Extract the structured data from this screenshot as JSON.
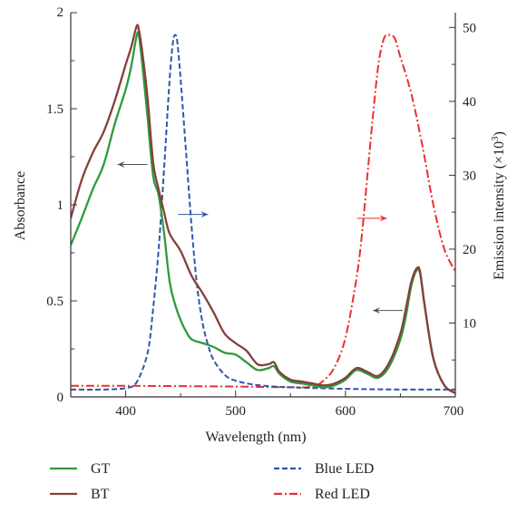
{
  "colors": {
    "GT": "#2e9a3c",
    "BT": "#84403a",
    "Blue LED": "#2f56a8",
    "Red LED": "#e8312c",
    "axis": "#333333"
  },
  "chart_data": {
    "type": "line",
    "xlabel": "Wavelength (nm)",
    "ylabel_left": "Absorbance",
    "ylabel_right_prefix": "Emission intensity (×10",
    "ylabel_right_exp": "3",
    "ylabel_right_suffix": ")",
    "xlim": [
      350,
      700
    ],
    "ylim_left": [
      0,
      2
    ],
    "ylim_right": [
      0,
      52
    ],
    "x_ticks": [
      400,
      500,
      600,
      700
    ],
    "y_ticks_left": [
      0,
      0.5,
      1,
      1.5,
      2
    ],
    "y_ticks_left_labels": [
      "0",
      "0.5",
      "1",
      "1.5",
      "2"
    ],
    "y_ticks_right": [
      10,
      20,
      30,
      40,
      50
    ],
    "legend": [
      "GT",
      "BT",
      "Blue LED",
      "Red LED"
    ],
    "legend_position": "bottom",
    "series": [
      {
        "name": "GT",
        "axis": "left",
        "style": "solid",
        "points": [
          [
            350,
            0.79
          ],
          [
            360,
            0.93
          ],
          [
            370,
            1.08
          ],
          [
            380,
            1.21
          ],
          [
            390,
            1.42
          ],
          [
            400,
            1.6
          ],
          [
            405,
            1.72
          ],
          [
            410,
            1.88
          ],
          [
            412,
            1.88
          ],
          [
            415,
            1.74
          ],
          [
            420,
            1.45
          ],
          [
            425,
            1.15
          ],
          [
            430,
            1.05
          ],
          [
            435,
            0.85
          ],
          [
            440,
            0.6
          ],
          [
            445,
            0.48
          ],
          [
            450,
            0.4
          ],
          [
            455,
            0.34
          ],
          [
            460,
            0.3
          ],
          [
            470,
            0.28
          ],
          [
            480,
            0.26
          ],
          [
            490,
            0.23
          ],
          [
            500,
            0.22
          ],
          [
            510,
            0.18
          ],
          [
            520,
            0.14
          ],
          [
            530,
            0.15
          ],
          [
            535,
            0.16
          ],
          [
            540,
            0.12
          ],
          [
            550,
            0.08
          ],
          [
            560,
            0.07
          ],
          [
            570,
            0.06
          ],
          [
            580,
            0.05
          ],
          [
            590,
            0.06
          ],
          [
            600,
            0.09
          ],
          [
            610,
            0.14
          ],
          [
            620,
            0.12
          ],
          [
            630,
            0.1
          ],
          [
            640,
            0.16
          ],
          [
            650,
            0.3
          ],
          [
            655,
            0.42
          ],
          [
            660,
            0.58
          ],
          [
            665,
            0.66
          ],
          [
            668,
            0.64
          ],
          [
            672,
            0.48
          ],
          [
            680,
            0.2
          ],
          [
            690,
            0.06
          ],
          [
            700,
            0.02
          ]
        ]
      },
      {
        "name": "BT",
        "axis": "left",
        "style": "solid",
        "points": [
          [
            350,
            0.93
          ],
          [
            360,
            1.13
          ],
          [
            370,
            1.27
          ],
          [
            380,
            1.38
          ],
          [
            390,
            1.54
          ],
          [
            400,
            1.73
          ],
          [
            405,
            1.82
          ],
          [
            410,
            1.93
          ],
          [
            412,
            1.91
          ],
          [
            415,
            1.8
          ],
          [
            420,
            1.55
          ],
          [
            425,
            1.22
          ],
          [
            430,
            1.08
          ],
          [
            435,
            0.96
          ],
          [
            440,
            0.85
          ],
          [
            450,
            0.76
          ],
          [
            460,
            0.63
          ],
          [
            470,
            0.54
          ],
          [
            480,
            0.44
          ],
          [
            490,
            0.33
          ],
          [
            500,
            0.28
          ],
          [
            510,
            0.24
          ],
          [
            520,
            0.17
          ],
          [
            530,
            0.17
          ],
          [
            535,
            0.18
          ],
          [
            540,
            0.13
          ],
          [
            550,
            0.09
          ],
          [
            560,
            0.08
          ],
          [
            570,
            0.07
          ],
          [
            580,
            0.06
          ],
          [
            590,
            0.07
          ],
          [
            600,
            0.1
          ],
          [
            610,
            0.15
          ],
          [
            620,
            0.13
          ],
          [
            630,
            0.11
          ],
          [
            640,
            0.18
          ],
          [
            650,
            0.33
          ],
          [
            655,
            0.46
          ],
          [
            660,
            0.6
          ],
          [
            665,
            0.67
          ],
          [
            668,
            0.65
          ],
          [
            672,
            0.48
          ],
          [
            680,
            0.2
          ],
          [
            690,
            0.06
          ],
          [
            700,
            0.02
          ]
        ]
      },
      {
        "name": "Blue LED",
        "axis": "right",
        "style": "dashed",
        "points": [
          [
            350,
            1.0
          ],
          [
            380,
            1.0
          ],
          [
            400,
            1.2
          ],
          [
            410,
            2.0
          ],
          [
            420,
            6.0
          ],
          [
            425,
            12.0
          ],
          [
            430,
            20.0
          ],
          [
            435,
            31.0
          ],
          [
            440,
            43.0
          ],
          [
            443,
            48.0
          ],
          [
            445,
            49.0
          ],
          [
            447,
            48.0
          ],
          [
            450,
            43.0
          ],
          [
            455,
            33.0
          ],
          [
            460,
            23.0
          ],
          [
            465,
            15.0
          ],
          [
            470,
            10.0
          ],
          [
            475,
            7.0
          ],
          [
            480,
            5.0
          ],
          [
            490,
            3.0
          ],
          [
            500,
            2.2
          ],
          [
            520,
            1.6
          ],
          [
            550,
            1.3
          ],
          [
            600,
            1.1
          ],
          [
            650,
            1.0
          ],
          [
            700,
            1.0
          ]
        ]
      },
      {
        "name": "Red LED",
        "axis": "right",
        "style": "dashdot",
        "points": [
          [
            350,
            1.5
          ],
          [
            400,
            1.5
          ],
          [
            500,
            1.4
          ],
          [
            550,
            1.3
          ],
          [
            570,
            1.4
          ],
          [
            580,
            2.2
          ],
          [
            590,
            4.0
          ],
          [
            600,
            8.0
          ],
          [
            610,
            16.0
          ],
          [
            615,
            22.0
          ],
          [
            620,
            30.0
          ],
          [
            625,
            38.0
          ],
          [
            630,
            45.0
          ],
          [
            635,
            48.5
          ],
          [
            640,
            49.0
          ],
          [
            645,
            48.5
          ],
          [
            650,
            46.0
          ],
          [
            660,
            41.0
          ],
          [
            670,
            34.0
          ],
          [
            680,
            26.0
          ],
          [
            690,
            20.0
          ],
          [
            700,
            17.0
          ]
        ]
      }
    ]
  }
}
